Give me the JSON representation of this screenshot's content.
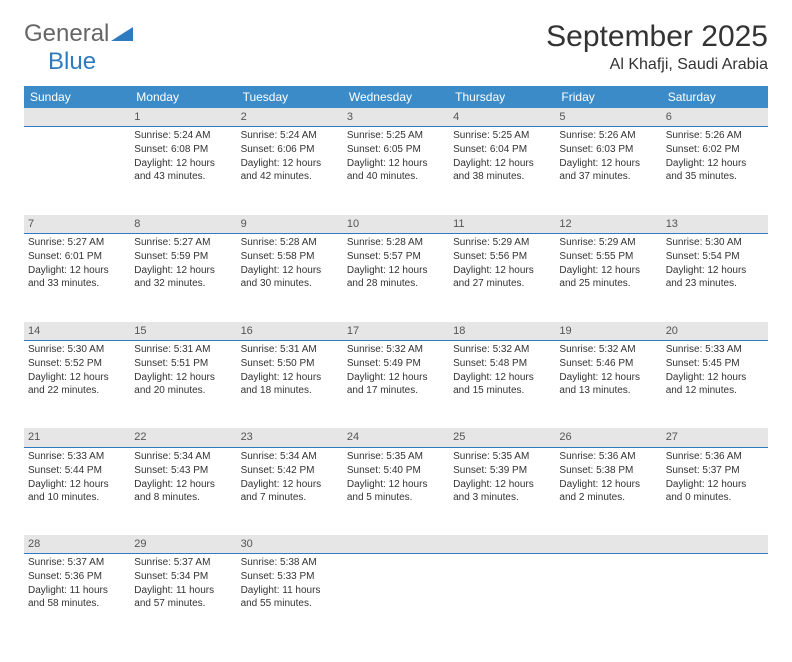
{
  "logo": {
    "first": "General",
    "second": "Blue"
  },
  "title": "September 2025",
  "location": "Al Khafji, Saudi Arabia",
  "colors": {
    "header_bg": "#3b8bc8",
    "header_text": "#ffffff",
    "daynum_bg": "#e6e6e6",
    "divider": "#2f7bbf",
    "text": "#333333",
    "logo_blue": "#2f7bbf",
    "logo_gray": "#666666"
  },
  "dayHeaders": [
    "Sunday",
    "Monday",
    "Tuesday",
    "Wednesday",
    "Thursday",
    "Friday",
    "Saturday"
  ],
  "weeks": [
    {
      "nums": [
        "",
        "1",
        "2",
        "3",
        "4",
        "5",
        "6"
      ],
      "cells": [
        [],
        [
          "Sunrise: 5:24 AM",
          "Sunset: 6:08 PM",
          "Daylight: 12 hours and 43 minutes."
        ],
        [
          "Sunrise: 5:24 AM",
          "Sunset: 6:06 PM",
          "Daylight: 12 hours and 42 minutes."
        ],
        [
          "Sunrise: 5:25 AM",
          "Sunset: 6:05 PM",
          "Daylight: 12 hours and 40 minutes."
        ],
        [
          "Sunrise: 5:25 AM",
          "Sunset: 6:04 PM",
          "Daylight: 12 hours and 38 minutes."
        ],
        [
          "Sunrise: 5:26 AM",
          "Sunset: 6:03 PM",
          "Daylight: 12 hours and 37 minutes."
        ],
        [
          "Sunrise: 5:26 AM",
          "Sunset: 6:02 PM",
          "Daylight: 12 hours and 35 minutes."
        ]
      ]
    },
    {
      "nums": [
        "7",
        "8",
        "9",
        "10",
        "11",
        "12",
        "13"
      ],
      "cells": [
        [
          "Sunrise: 5:27 AM",
          "Sunset: 6:01 PM",
          "Daylight: 12 hours and 33 minutes."
        ],
        [
          "Sunrise: 5:27 AM",
          "Sunset: 5:59 PM",
          "Daylight: 12 hours and 32 minutes."
        ],
        [
          "Sunrise: 5:28 AM",
          "Sunset: 5:58 PM",
          "Daylight: 12 hours and 30 minutes."
        ],
        [
          "Sunrise: 5:28 AM",
          "Sunset: 5:57 PM",
          "Daylight: 12 hours and 28 minutes."
        ],
        [
          "Sunrise: 5:29 AM",
          "Sunset: 5:56 PM",
          "Daylight: 12 hours and 27 minutes."
        ],
        [
          "Sunrise: 5:29 AM",
          "Sunset: 5:55 PM",
          "Daylight: 12 hours and 25 minutes."
        ],
        [
          "Sunrise: 5:30 AM",
          "Sunset: 5:54 PM",
          "Daylight: 12 hours and 23 minutes."
        ]
      ]
    },
    {
      "nums": [
        "14",
        "15",
        "16",
        "17",
        "18",
        "19",
        "20"
      ],
      "cells": [
        [
          "Sunrise: 5:30 AM",
          "Sunset: 5:52 PM",
          "Daylight: 12 hours and 22 minutes."
        ],
        [
          "Sunrise: 5:31 AM",
          "Sunset: 5:51 PM",
          "Daylight: 12 hours and 20 minutes."
        ],
        [
          "Sunrise: 5:31 AM",
          "Sunset: 5:50 PM",
          "Daylight: 12 hours and 18 minutes."
        ],
        [
          "Sunrise: 5:32 AM",
          "Sunset: 5:49 PM",
          "Daylight: 12 hours and 17 minutes."
        ],
        [
          "Sunrise: 5:32 AM",
          "Sunset: 5:48 PM",
          "Daylight: 12 hours and 15 minutes."
        ],
        [
          "Sunrise: 5:32 AM",
          "Sunset: 5:46 PM",
          "Daylight: 12 hours and 13 minutes."
        ],
        [
          "Sunrise: 5:33 AM",
          "Sunset: 5:45 PM",
          "Daylight: 12 hours and 12 minutes."
        ]
      ]
    },
    {
      "nums": [
        "21",
        "22",
        "23",
        "24",
        "25",
        "26",
        "27"
      ],
      "cells": [
        [
          "Sunrise: 5:33 AM",
          "Sunset: 5:44 PM",
          "Daylight: 12 hours and 10 minutes."
        ],
        [
          "Sunrise: 5:34 AM",
          "Sunset: 5:43 PM",
          "Daylight: 12 hours and 8 minutes."
        ],
        [
          "Sunrise: 5:34 AM",
          "Sunset: 5:42 PM",
          "Daylight: 12 hours and 7 minutes."
        ],
        [
          "Sunrise: 5:35 AM",
          "Sunset: 5:40 PM",
          "Daylight: 12 hours and 5 minutes."
        ],
        [
          "Sunrise: 5:35 AM",
          "Sunset: 5:39 PM",
          "Daylight: 12 hours and 3 minutes."
        ],
        [
          "Sunrise: 5:36 AM",
          "Sunset: 5:38 PM",
          "Daylight: 12 hours and 2 minutes."
        ],
        [
          "Sunrise: 5:36 AM",
          "Sunset: 5:37 PM",
          "Daylight: 12 hours and 0 minutes."
        ]
      ]
    },
    {
      "nums": [
        "28",
        "29",
        "30",
        "",
        "",
        "",
        ""
      ],
      "cells": [
        [
          "Sunrise: 5:37 AM",
          "Sunset: 5:36 PM",
          "Daylight: 11 hours and 58 minutes."
        ],
        [
          "Sunrise: 5:37 AM",
          "Sunset: 5:34 PM",
          "Daylight: 11 hours and 57 minutes."
        ],
        [
          "Sunrise: 5:38 AM",
          "Sunset: 5:33 PM",
          "Daylight: 11 hours and 55 minutes."
        ],
        [],
        [],
        [],
        []
      ]
    }
  ]
}
